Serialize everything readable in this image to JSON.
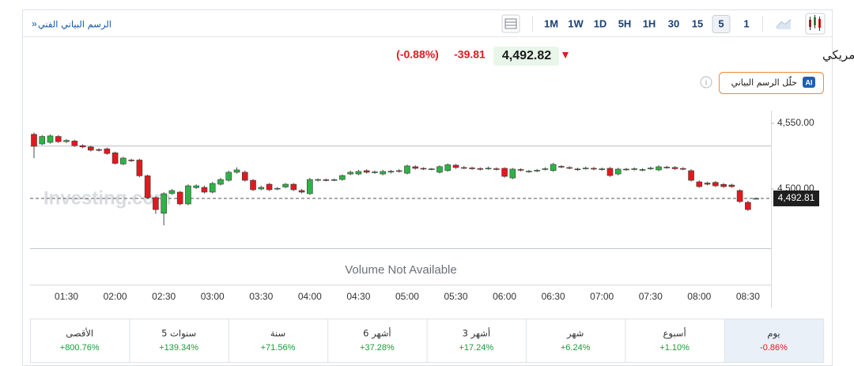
{
  "header": {
    "link": "الرسم البياني الفني",
    "link_arrow": "»",
    "timeframes": [
      "1M",
      "1W",
      "1D",
      "5H",
      "1H",
      "30",
      "15",
      "5",
      "1"
    ],
    "selected_timeframe": "5"
  },
  "quote": {
    "symbol_name": "XAU/USD - العقود الفورية للذهب دولار أمريكي",
    "price": "4,492.82",
    "change": "-39.81",
    "change_percent": "(-0.88%)",
    "ai_badge": "AI",
    "ai_button": "حلّل الرسم البياني"
  },
  "chart_data": {
    "type": "candlestick",
    "watermark": "Investing.com",
    "volume_note": "Volume Not Available",
    "colors": {
      "up": "#2fb344",
      "down": "#e3181f"
    },
    "categories": [
      null,
      null,
      null,
      null,
      "01:30",
      null,
      null,
      null,
      null,
      null,
      "02:00",
      null,
      null,
      null,
      null,
      null,
      "02:30",
      null,
      null,
      null,
      null,
      null,
      "03:00",
      null,
      null,
      null,
      null,
      null,
      "03:30",
      null,
      null,
      null,
      null,
      null,
      "04:00",
      null,
      null,
      null,
      null,
      null,
      "04:30",
      null,
      null,
      null,
      null,
      null,
      "05:00",
      null,
      null,
      null,
      null,
      null,
      "05:30",
      null,
      null,
      null,
      null,
      null,
      "06:00",
      null,
      null,
      null,
      null,
      null,
      "06:30",
      null,
      null,
      null,
      null,
      null,
      "07:00",
      null,
      null,
      null,
      null,
      null,
      "07:30",
      null,
      null,
      null,
      null,
      null,
      "08:00",
      null,
      null,
      null,
      null,
      null,
      "08:30",
      null
    ],
    "open": [
      4541.6,
      4534.3,
      4535.5,
      4540,
      4536,
      4536.5,
      4533,
      4532,
      4530,
      4530.5,
      4527.5,
      4519,
      4522,
      4522,
      4510,
      4493.4,
      4481.5,
      4496.5,
      4497.6,
      4488.6,
      4501,
      4501.2,
      4497.6,
      4503.6,
      4506.6,
      4512.7,
      4512.7,
      4506.6,
      4500,
      4503.6,
      4500,
      4501.5,
      4503.6,
      4498.8,
      4496.4,
      4506.6,
      4507,
      4507,
      4507.2,
      4511.4,
      4511.4,
      4513.9,
      4512.5,
      4511.4,
      4512.8,
      4513.9,
      4512,
      4516.9,
      4515.7,
      4515,
      4512.7,
      4514,
      4518.1,
      4516.3,
      4516,
      4515.5,
      4515.6,
      4515.4,
      4515.7,
      4508.4,
      4514.8,
      4513.3,
      4513.9,
      4515.1,
      4514,
      4517.2,
      4516.3,
      4515.2,
      4515.7,
      4515.7,
      4514.8,
      4515.7,
      4511.4,
      4515.1,
      4515,
      4514.5,
      4515.4,
      4514.5,
      4516.6,
      4516.4,
      4515.6,
      4513.9,
      4505.4,
      4504.5,
      4505,
      4503.5,
      4503,
      4498.8,
      4489.8,
      4492.8
    ],
    "high": [
      4543,
      4541,
      4541.5,
      4541,
      4538,
      4537.5,
      4534,
      4533,
      4531,
      4531.5,
      4528.5,
      4524.5,
      4523,
      4523,
      4511,
      4494.5,
      4497.5,
      4500,
      4498.5,
      4503.5,
      4503.5,
      4502.5,
      4505.5,
      4508.5,
      4514,
      4516.5,
      4514,
      4507.5,
      4502.5,
      4504.5,
      4501.5,
      4504.5,
      4504.5,
      4500,
      4508.5,
      4508,
      4508,
      4508,
      4511,
      4514,
      4514.5,
      4515,
      4514,
      4514.5,
      4514.5,
      4515,
      4518.5,
      4518,
      4516.5,
      4516,
      4518,
      4519.5,
      4519,
      4517.5,
      4517,
      4516.5,
      4517,
      4516.5,
      4516.5,
      4516,
      4515.8,
      4514.5,
      4515.2,
      4516.5,
      4519.8,
      4518.2,
      4517.3,
      4516.2,
      4517,
      4516.8,
      4516.3,
      4516.7,
      4516.2,
      4516,
      4516.4,
      4515.8,
      4517,
      4518,
      4517.6,
      4517.4,
      4516.6,
      4515,
      4506.5,
      4505.5,
      4506,
      4504.5,
      4504,
      4499.8,
      4491,
      4493.5
    ],
    "low": [
      4523.5,
      4533.3,
      4534.5,
      4535,
      4535,
      4532,
      4531,
      4528.5,
      4528.5,
      4526,
      4518.5,
      4518,
      4520.5,
      4509,
      4492.4,
      4481,
      4472.3,
      4495.5,
      4487.5,
      4487.6,
      4500,
      4496.6,
      4496.6,
      4502.6,
      4505.6,
      4511.7,
      4505.6,
      4498.4,
      4499,
      4498.4,
      4499,
      4500.5,
      4498.4,
      4496.6,
      4495.4,
      4505.6,
      4505.8,
      4506,
      4506.2,
      4510.4,
      4510.4,
      4511.7,
      4511.5,
      4510.4,
      4511.8,
      4512.4,
      4511,
      4514.7,
      4514.4,
      4514.3,
      4511.7,
      4513,
      4515.3,
      4515.1,
      4514.5,
      4514.1,
      4514.6,
      4514.1,
      4508.6,
      4507.4,
      4513.3,
      4512.3,
      4512.9,
      4514.1,
      4513,
      4515.8,
      4515,
      4513.8,
      4514.7,
      4514.2,
      4513.8,
      4509.2,
      4510.4,
      4513.9,
      4514,
      4513.5,
      4514.4,
      4513.5,
      4515.4,
      4514.4,
      4514.2,
      4505.6,
      4500.8,
      4502.6,
      4501.4,
      4500.8,
      4500.8,
      4489.4,
      4483.3,
      4492
    ],
    "close": [
      4532.5,
      4540,
      4540.4,
      4536,
      4537,
      4533,
      4532,
      4529.5,
      4529.5,
      4527,
      4519.5,
      4523.5,
      4521.5,
      4510,
      4493.4,
      4484.3,
      4496.4,
      4498.8,
      4488.6,
      4502.4,
      4502.4,
      4497.6,
      4504.2,
      4507.2,
      4512.7,
      4514.5,
      4506.6,
      4499.4,
      4501.2,
      4499.4,
      4500.5,
      4503.6,
      4499.4,
      4497.6,
      4507.2,
      4507.2,
      4506.8,
      4507.1,
      4510.2,
      4512.7,
      4513.3,
      4512.7,
      4513,
      4513.3,
      4513.5,
      4513.4,
      4517.5,
      4515.7,
      4515.4,
      4515.3,
      4517,
      4518.4,
      4516.3,
      4516.1,
      4515.5,
      4515.1,
      4515.8,
      4515.1,
      4509.6,
      4515.1,
      4514.3,
      4513.6,
      4514.2,
      4515.4,
      4518.7,
      4516.8,
      4516,
      4514.8,
      4515.9,
      4515.2,
      4515.3,
      4510.2,
      4515.1,
      4514.9,
      4515.4,
      4514.8,
      4515.9,
      4516.9,
      4516.4,
      4515.4,
      4515.2,
      4506.6,
      4501.8,
      4503.6,
      4502.4,
      4501.8,
      4501.8,
      4490.4,
      4484.3,
      4492.8
    ],
    "ylim": [
      4463.3,
      4559.6
    ],
    "yticks": [
      {
        "value": 4550,
        "label": "4,550.00"
      },
      {
        "value": 4500,
        "label": "4,500.00"
      }
    ],
    "prev_close": 4532.63,
    "current_price": {
      "value": 4492.81,
      "label": "4,492.81"
    }
  },
  "performance": [
    {
      "period": "يوم",
      "change": "-0.86%",
      "color": "#e3181f"
    },
    {
      "period": "أسبوع",
      "change": "+1.10%",
      "color": "#1a9b3a"
    },
    {
      "period": "شهر",
      "change": "+6.24%",
      "color": "#1a9b3a"
    },
    {
      "period": "3 أشهر",
      "change": "+17.24%",
      "color": "#1a9b3a"
    },
    {
      "period": "6 أشهر",
      "change": "+37.28%",
      "color": "#1a9b3a"
    },
    {
      "period": "سنة",
      "change": "+71.56%",
      "color": "#1a9b3a"
    },
    {
      "period": "5 سنوات",
      "change": "+139.34%",
      "color": "#1a9b3a"
    },
    {
      "period": "الأقصى",
      "change": "+800.76%",
      "color": "#1a9b3a"
    }
  ]
}
